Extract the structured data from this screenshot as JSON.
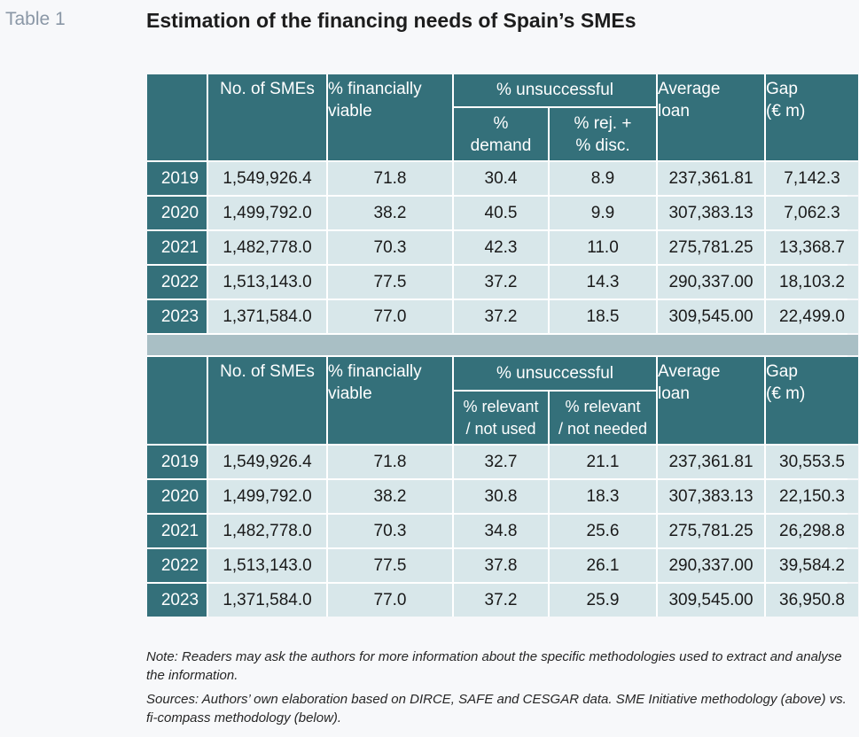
{
  "table_label": "Table 1",
  "title": "Estimation of the financing needs of Spain’s SMEs",
  "headers": {
    "num_smes": "No. of SMEs",
    "viable_l1": "% financially",
    "viable_l2": "viable",
    "unsuccessful": "% unsuccessful",
    "avg_l1": "Average",
    "avg_l2": "loan",
    "gap_l1": "Gap",
    "gap_l2": "(€ m)"
  },
  "top": {
    "sub1_l1": "%",
    "sub1_l2": "demand",
    "sub2_l1": "% rej. +",
    "sub2_l2": "% disc.",
    "rows": [
      [
        "2019",
        "1,549,926.4",
        "71.8",
        "30.4",
        "8.9",
        "237,361.81",
        "7,142.3"
      ],
      [
        "2020",
        "1,499,792.0",
        "38.2",
        "40.5",
        "9.9",
        "307,383.13",
        "7,062.3"
      ],
      [
        "2021",
        "1,482,778.0",
        "70.3",
        "42.3",
        "11.0",
        "275,781.25",
        "13,368.7"
      ],
      [
        "2022",
        "1,513,143.0",
        "77.5",
        "37.2",
        "14.3",
        "290,337.00",
        "18,103.2"
      ],
      [
        "2023",
        "1,371,584.0",
        "77.0",
        "37.2",
        "18.5",
        "309,545.00",
        "22,499.0"
      ]
    ]
  },
  "bottom": {
    "sub1_l1": "% relevant",
    "sub1_l2": "/ not used",
    "sub2_l1": "% relevant",
    "sub2_l2": "/ not needed",
    "rows": [
      [
        "2019",
        "1,549,926.4",
        "71.8",
        "32.7",
        "21.1",
        "237,361.81",
        "30,553.5"
      ],
      [
        "2020",
        "1,499,792.0",
        "38.2",
        "30.8",
        "18.3",
        "307,383.13",
        "22,150.3"
      ],
      [
        "2021",
        "1,482,778.0",
        "70.3",
        "34.8",
        "25.6",
        "275,781.25",
        "26,298.8"
      ],
      [
        "2022",
        "1,513,143.0",
        "77.5",
        "37.8",
        "26.1",
        "290,337.00",
        "39,584.2"
      ],
      [
        "2023",
        "1,371,584.0",
        "77.0",
        "37.2",
        "25.9",
        "309,545.00",
        "36,950.8"
      ]
    ]
  },
  "note": "Note: Readers may ask the authors for more information about the specific methodologies used to extract and analyse the information.",
  "sources": "Sources: Authors’ own elaboration based on DIRCE, SAFE and CESGAR data. SME Initiative methodology (above) vs. fi-compass methodology (below)."
}
